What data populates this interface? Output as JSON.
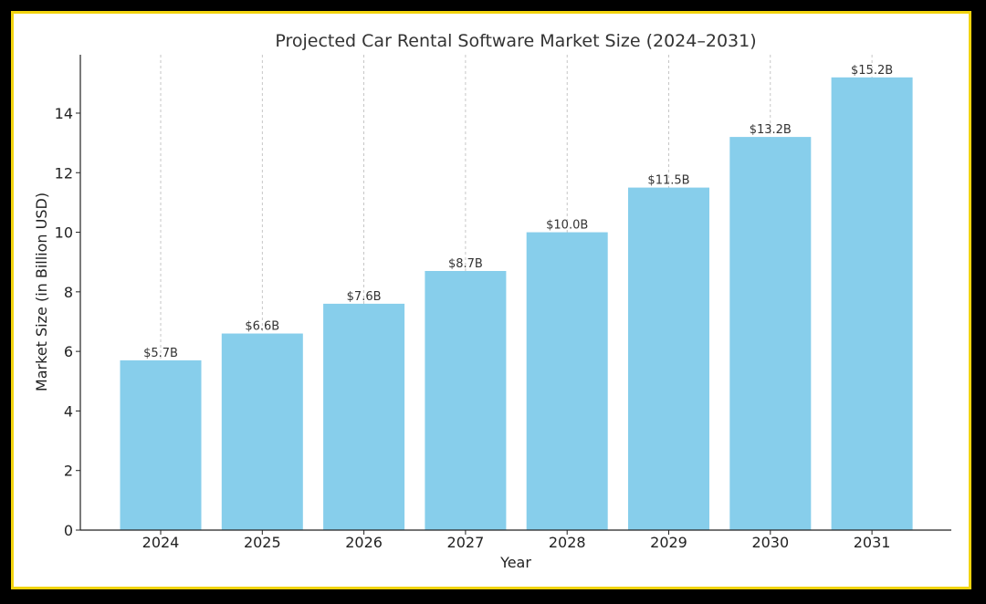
{
  "chart_data": {
    "type": "bar",
    "title": "Projected Car Rental Software Market Size (2024–2031)",
    "xlabel": "Year",
    "ylabel": "Market Size (in Billion USD)",
    "categories": [
      "2024",
      "2025",
      "2026",
      "2027",
      "2028",
      "2029",
      "2030",
      "2031"
    ],
    "values": [
      5.7,
      6.6,
      7.6,
      8.7,
      10.0,
      11.5,
      13.2,
      15.2
    ],
    "data_labels": [
      "$5.7B",
      "$6.6B",
      "$7.6B",
      "$8.7B",
      "$10.0B",
      "$11.5B",
      "$13.2B",
      "$15.2B"
    ],
    "yticks": [
      0,
      2,
      4,
      6,
      8,
      10,
      12,
      14
    ],
    "ylim": [
      0,
      15.96
    ],
    "grid": "vertical dashed",
    "bar_color": "#87ceeb",
    "frame_color": "#f2d40f"
  }
}
